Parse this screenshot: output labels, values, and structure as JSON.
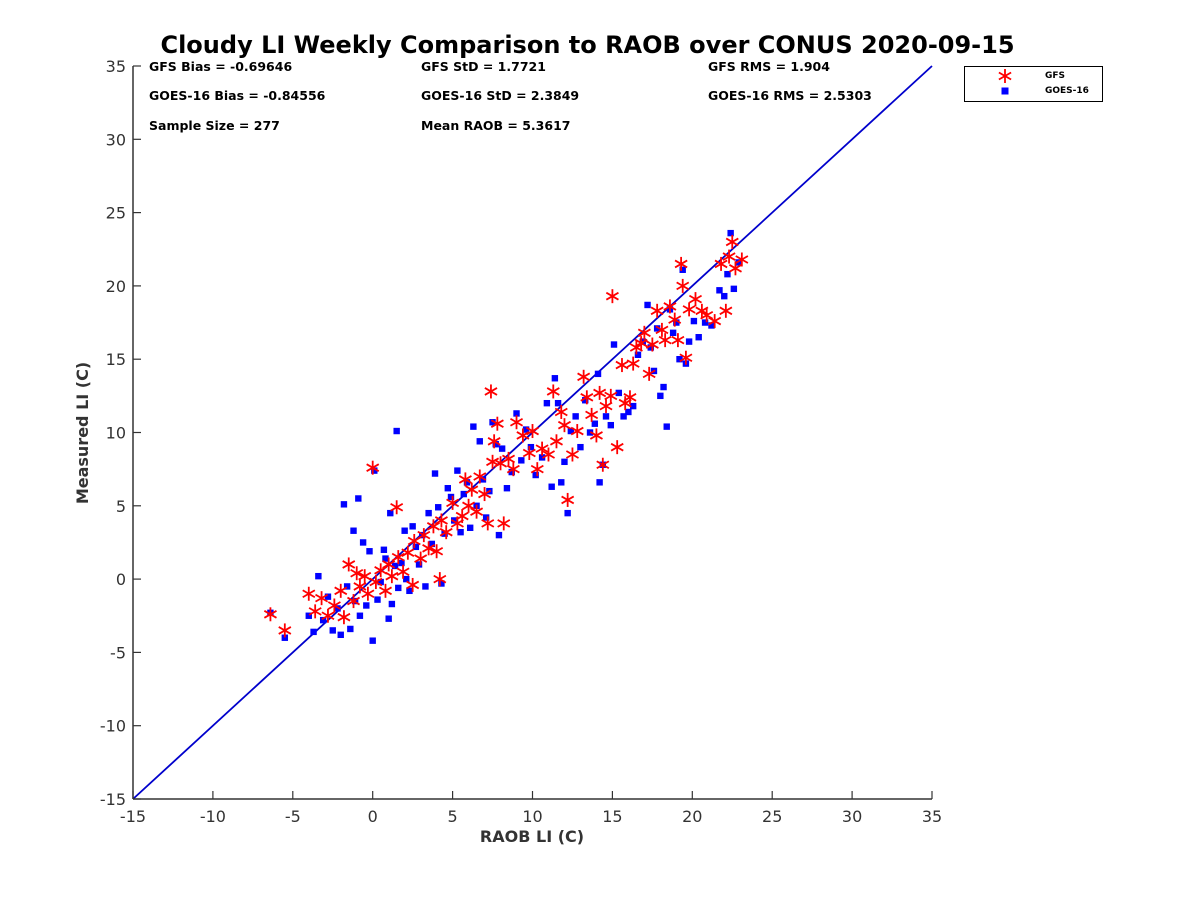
{
  "title": "Cloudy LI Weekly Comparison to RAOB over CONUS 2020-09-15",
  "stats": {
    "gfs_bias": "GFS Bias = -0.69646",
    "gfs_std": "GFS StD = 1.7721",
    "gfs_rms": "GFS RMS = 1.904",
    "goes_bias": "GOES-16 Bias = -0.84556",
    "goes_std": "GOES-16 StD = 2.3849",
    "goes_rms": "GOES-16 RMS = 2.5303",
    "sample_size": "Sample Size = 277",
    "mean_raob": "Mean RAOB = 5.3617"
  },
  "legend": {
    "gfs": "GFS",
    "goes": "GOES-16"
  },
  "colors": {
    "gfs": "#ff0000",
    "goes": "#0000ff",
    "line": "#0000cc"
  },
  "chart_data": {
    "type": "scatter",
    "title": "Cloudy LI Weekly Comparison to RAOB over CONUS 2020-09-15",
    "xlabel": "RAOB LI (C)",
    "ylabel": "Measured LI (C)",
    "xlim": [
      -15,
      35
    ],
    "ylim": [
      -15,
      35
    ],
    "xticks": [
      -15,
      -10,
      -5,
      0,
      5,
      10,
      15,
      20,
      25,
      30,
      35
    ],
    "yticks": [
      -15,
      -10,
      -5,
      0,
      5,
      10,
      15,
      20,
      25,
      30,
      35
    ],
    "reference_line": {
      "x": [
        -15,
        35
      ],
      "y": [
        -15,
        35
      ]
    },
    "grid": false,
    "legend_position": "top-right outside",
    "series": [
      {
        "name": "GFS",
        "marker": "asterisk",
        "points": [
          [
            -6.4,
            -2.4
          ],
          [
            -5.5,
            -3.5
          ],
          [
            -4.0,
            -1.0
          ],
          [
            -3.6,
            -2.2
          ],
          [
            -3.2,
            -1.3
          ],
          [
            -2.8,
            -2.5
          ],
          [
            -2.4,
            -1.8
          ],
          [
            -2.0,
            -0.8
          ],
          [
            -1.8,
            -2.6
          ],
          [
            -1.5,
            1.0
          ],
          [
            -1.2,
            -1.5
          ],
          [
            -1.0,
            0.4
          ],
          [
            -0.8,
            -0.5
          ],
          [
            -0.5,
            0.2
          ],
          [
            -0.3,
            -1.0
          ],
          [
            0.0,
            7.6
          ],
          [
            0.2,
            -0.2
          ],
          [
            0.5,
            0.6
          ],
          [
            0.8,
            -0.8
          ],
          [
            1.0,
            1.0
          ],
          [
            1.2,
            0.2
          ],
          [
            1.5,
            4.9
          ],
          [
            1.6,
            1.5
          ],
          [
            1.9,
            0.5
          ],
          [
            2.2,
            1.8
          ],
          [
            2.5,
            -0.4
          ],
          [
            2.6,
            2.6
          ],
          [
            3.0,
            1.4
          ],
          [
            3.2,
            3.0
          ],
          [
            3.5,
            2.1
          ],
          [
            3.8,
            3.6
          ],
          [
            4.0,
            1.9
          ],
          [
            4.2,
            0.0
          ],
          [
            4.3,
            4.0
          ],
          [
            4.6,
            3.2
          ],
          [
            5.0,
            5.2
          ],
          [
            5.3,
            3.8
          ],
          [
            5.6,
            4.3
          ],
          [
            5.8,
            6.8
          ],
          [
            6.0,
            5.0
          ],
          [
            6.2,
            6.1
          ],
          [
            6.5,
            4.6
          ],
          [
            6.7,
            7.0
          ],
          [
            7.0,
            5.8
          ],
          [
            7.2,
            3.8
          ],
          [
            7.4,
            12.8
          ],
          [
            7.5,
            8.0
          ],
          [
            7.6,
            9.4
          ],
          [
            7.8,
            10.6
          ],
          [
            8.0,
            7.9
          ],
          [
            8.2,
            3.8
          ],
          [
            8.5,
            8.2
          ],
          [
            8.8,
            7.5
          ],
          [
            9.0,
            10.7
          ],
          [
            9.4,
            9.8
          ],
          [
            9.8,
            8.6
          ],
          [
            10.0,
            10.1
          ],
          [
            10.3,
            7.5
          ],
          [
            10.6,
            8.9
          ],
          [
            11.0,
            8.5
          ],
          [
            11.3,
            12.8
          ],
          [
            11.5,
            9.4
          ],
          [
            11.8,
            11.4
          ],
          [
            12.0,
            10.5
          ],
          [
            12.2,
            5.4
          ],
          [
            12.5,
            8.5
          ],
          [
            12.8,
            10.1
          ],
          [
            13.2,
            13.8
          ],
          [
            13.4,
            12.4
          ],
          [
            13.7,
            11.2
          ],
          [
            14.0,
            9.8
          ],
          [
            14.2,
            12.7
          ],
          [
            14.4,
            7.8
          ],
          [
            14.6,
            11.8
          ],
          [
            14.9,
            12.5
          ],
          [
            15.0,
            19.3
          ],
          [
            15.3,
            9.0
          ],
          [
            15.6,
            14.6
          ],
          [
            15.8,
            12.0
          ],
          [
            16.1,
            12.4
          ],
          [
            16.3,
            14.7
          ],
          [
            16.5,
            15.8
          ],
          [
            16.8,
            16.1
          ],
          [
            17.0,
            16.8
          ],
          [
            17.3,
            14.0
          ],
          [
            17.5,
            16.0
          ],
          [
            17.8,
            18.3
          ],
          [
            18.1,
            17.0
          ],
          [
            18.3,
            16.3
          ],
          [
            18.6,
            18.6
          ],
          [
            18.9,
            17.7
          ],
          [
            19.1,
            16.3
          ],
          [
            19.3,
            21.5
          ],
          [
            19.4,
            20.0
          ],
          [
            19.6,
            15.1
          ],
          [
            19.8,
            18.4
          ],
          [
            20.2,
            19.1
          ],
          [
            20.6,
            18.3
          ],
          [
            20.9,
            18.0
          ],
          [
            21.4,
            17.6
          ],
          [
            21.8,
            21.5
          ],
          [
            22.1,
            18.3
          ],
          [
            22.3,
            22.0
          ],
          [
            22.5,
            23.0
          ],
          [
            22.7,
            21.2
          ],
          [
            23.1,
            21.8
          ]
        ]
      },
      {
        "name": "GOES-16",
        "marker": "square",
        "points": [
          [
            -6.4,
            -2.3
          ],
          [
            -5.5,
            -4.0
          ],
          [
            -4.0,
            -2.5
          ],
          [
            -3.7,
            -3.6
          ],
          [
            -3.4,
            0.2
          ],
          [
            -3.1,
            -2.8
          ],
          [
            -2.8,
            -1.2
          ],
          [
            -2.5,
            -3.5
          ],
          [
            -2.2,
            -2.0
          ],
          [
            -2.0,
            -3.8
          ],
          [
            -1.8,
            5.1
          ],
          [
            -1.6,
            -0.5
          ],
          [
            -1.4,
            -3.4
          ],
          [
            -1.2,
            3.3
          ],
          [
            -1.1,
            -1.5
          ],
          [
            -0.9,
            5.5
          ],
          [
            -0.8,
            -2.5
          ],
          [
            -0.6,
            2.5
          ],
          [
            -0.4,
            -1.8
          ],
          [
            -0.2,
            1.9
          ],
          [
            0.0,
            -4.2
          ],
          [
            0.1,
            7.4
          ],
          [
            0.3,
            -1.4
          ],
          [
            0.5,
            -0.2
          ],
          [
            0.7,
            2.0
          ],
          [
            0.8,
            1.4
          ],
          [
            1.0,
            -2.7
          ],
          [
            1.1,
            4.5
          ],
          [
            1.2,
            -1.7
          ],
          [
            1.4,
            0.9
          ],
          [
            1.5,
            10.1
          ],
          [
            1.6,
            -0.6
          ],
          [
            1.8,
            1.1
          ],
          [
            2.0,
            3.3
          ],
          [
            2.1,
            0.0
          ],
          [
            2.3,
            -0.8
          ],
          [
            2.5,
            3.6
          ],
          [
            2.7,
            2.2
          ],
          [
            2.9,
            1.0
          ],
          [
            3.1,
            3.0
          ],
          [
            3.3,
            -0.5
          ],
          [
            3.5,
            4.5
          ],
          [
            3.7,
            2.4
          ],
          [
            3.9,
            7.2
          ],
          [
            4.1,
            4.9
          ],
          [
            4.3,
            -0.3
          ],
          [
            4.5,
            3.1
          ],
          [
            4.7,
            6.2
          ],
          [
            4.9,
            5.6
          ],
          [
            5.1,
            4.0
          ],
          [
            5.3,
            7.4
          ],
          [
            5.5,
            3.2
          ],
          [
            5.7,
            5.8
          ],
          [
            5.9,
            6.6
          ],
          [
            6.1,
            3.5
          ],
          [
            6.3,
            10.4
          ],
          [
            6.5,
            5.0
          ],
          [
            6.7,
            9.4
          ],
          [
            6.9,
            6.8
          ],
          [
            7.1,
            4.2
          ],
          [
            7.3,
            6.0
          ],
          [
            7.5,
            10.7
          ],
          [
            7.7,
            9.2
          ],
          [
            7.9,
            3.0
          ],
          [
            8.1,
            8.9
          ],
          [
            8.4,
            6.2
          ],
          [
            8.7,
            7.3
          ],
          [
            9.0,
            11.3
          ],
          [
            9.3,
            8.1
          ],
          [
            9.6,
            10.2
          ],
          [
            9.9,
            9.0
          ],
          [
            10.2,
            7.1
          ],
          [
            10.6,
            8.3
          ],
          [
            10.9,
            12.0
          ],
          [
            11.2,
            6.3
          ],
          [
            11.4,
            13.7
          ],
          [
            11.6,
            12.0
          ],
          [
            11.8,
            6.6
          ],
          [
            12.0,
            8.0
          ],
          [
            12.2,
            4.5
          ],
          [
            12.4,
            10.1
          ],
          [
            12.7,
            11.1
          ],
          [
            13.0,
            9.0
          ],
          [
            13.3,
            12.2
          ],
          [
            13.6,
            10.0
          ],
          [
            13.9,
            10.6
          ],
          [
            14.1,
            14.0
          ],
          [
            14.2,
            6.6
          ],
          [
            14.4,
            7.8
          ],
          [
            14.6,
            11.1
          ],
          [
            14.9,
            10.5
          ],
          [
            15.1,
            16.0
          ],
          [
            15.4,
            12.7
          ],
          [
            15.7,
            11.1
          ],
          [
            16.0,
            11.4
          ],
          [
            16.3,
            11.8
          ],
          [
            16.6,
            15.3
          ],
          [
            16.9,
            16.2
          ],
          [
            17.2,
            18.7
          ],
          [
            17.4,
            15.8
          ],
          [
            17.6,
            14.2
          ],
          [
            17.8,
            17.1
          ],
          [
            18.0,
            12.5
          ],
          [
            18.2,
            13.1
          ],
          [
            18.4,
            10.4
          ],
          [
            18.6,
            18.4
          ],
          [
            18.8,
            16.8
          ],
          [
            19.0,
            17.5
          ],
          [
            19.2,
            15.0
          ],
          [
            19.4,
            21.1
          ],
          [
            19.6,
            14.7
          ],
          [
            19.8,
            16.2
          ],
          [
            20.1,
            17.6
          ],
          [
            20.4,
            16.5
          ],
          [
            20.8,
            17.5
          ],
          [
            21.2,
            17.3
          ],
          [
            21.7,
            19.7
          ],
          [
            22.0,
            19.3
          ],
          [
            22.2,
            20.8
          ],
          [
            22.4,
            23.6
          ],
          [
            22.6,
            19.8
          ],
          [
            22.9,
            21.6
          ]
        ]
      }
    ]
  }
}
